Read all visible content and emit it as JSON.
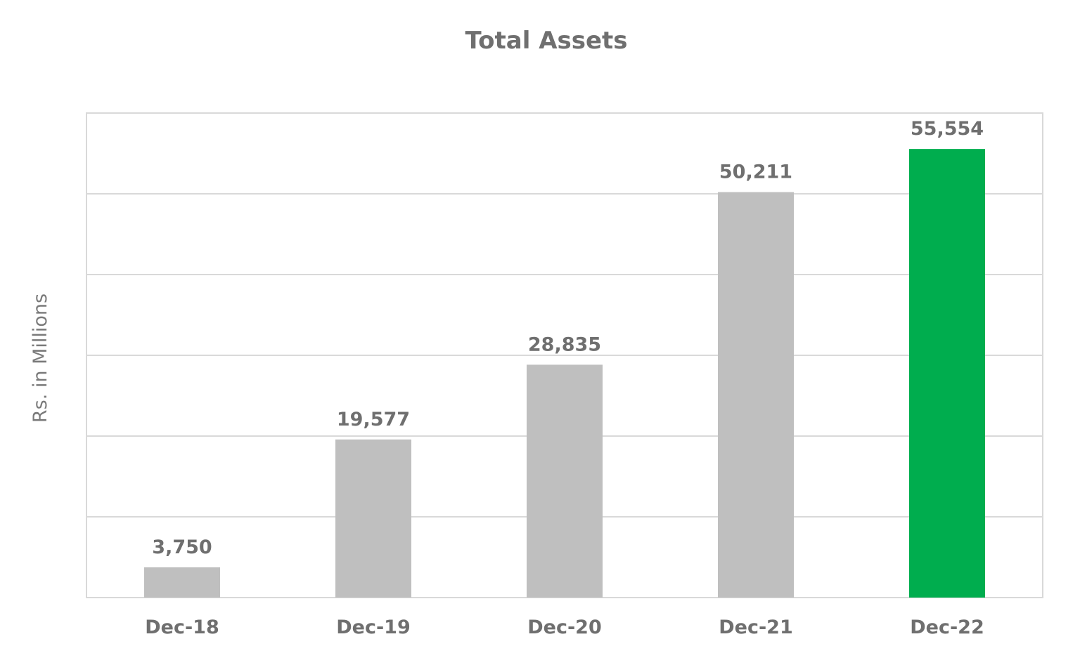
{
  "chart_data": {
    "type": "bar",
    "title": "Total Assets",
    "xlabel": "",
    "ylabel": "Rs. in Millions",
    "categories": [
      "Dec-18",
      "Dec-19",
      "Dec-20",
      "Dec-21",
      "Dec-22"
    ],
    "values": [
      3750,
      19577,
      28835,
      50211,
      55554
    ],
    "value_labels": [
      "3,750",
      "19,577",
      "28,835",
      "50,211",
      "55,554"
    ],
    "ylim": [
      0,
      60000
    ],
    "y_gridline_step": 10000,
    "y_tick_labels_shown": false,
    "grid": true,
    "legend": "none",
    "colors": {
      "default_bar": "#bfbfbf",
      "highlight_bar": "#00ad4e",
      "highlight_category": "Dec-22",
      "gridline": "#d9d9d9",
      "text": "#6f6f6f"
    }
  }
}
